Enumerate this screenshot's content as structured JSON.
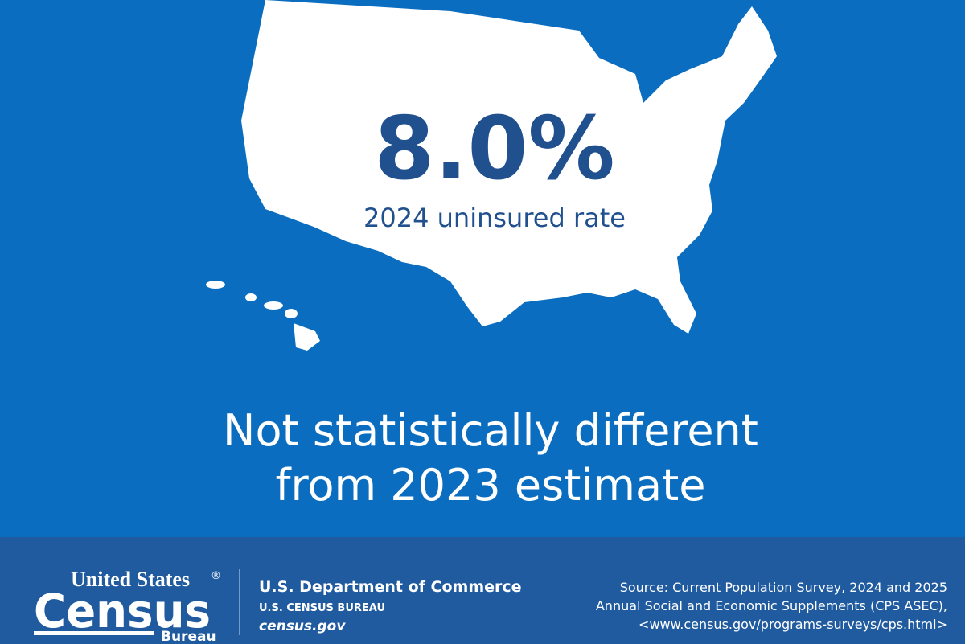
{
  "headline": {
    "value": "8.0%",
    "caption": "2024 uninsured rate"
  },
  "note": {
    "lines": [
      "Not statistically different",
      "from 2023 estimate"
    ]
  },
  "footer": {
    "logo": {
      "top": "United States",
      "mark": "®",
      "main": "Census",
      "bottom": "Bureau"
    },
    "agency": {
      "department": "U.S. Department of Commerce",
      "bureau": "U.S. CENSUS BUREAU",
      "site": "census.gov"
    },
    "source": [
      "Source: Current Population Survey, 2024 and 2025",
      "Annual Social and Economic Supplements (CPS ASEC),",
      "<www.census.gov/programs-surveys/cps.html>"
    ]
  }
}
